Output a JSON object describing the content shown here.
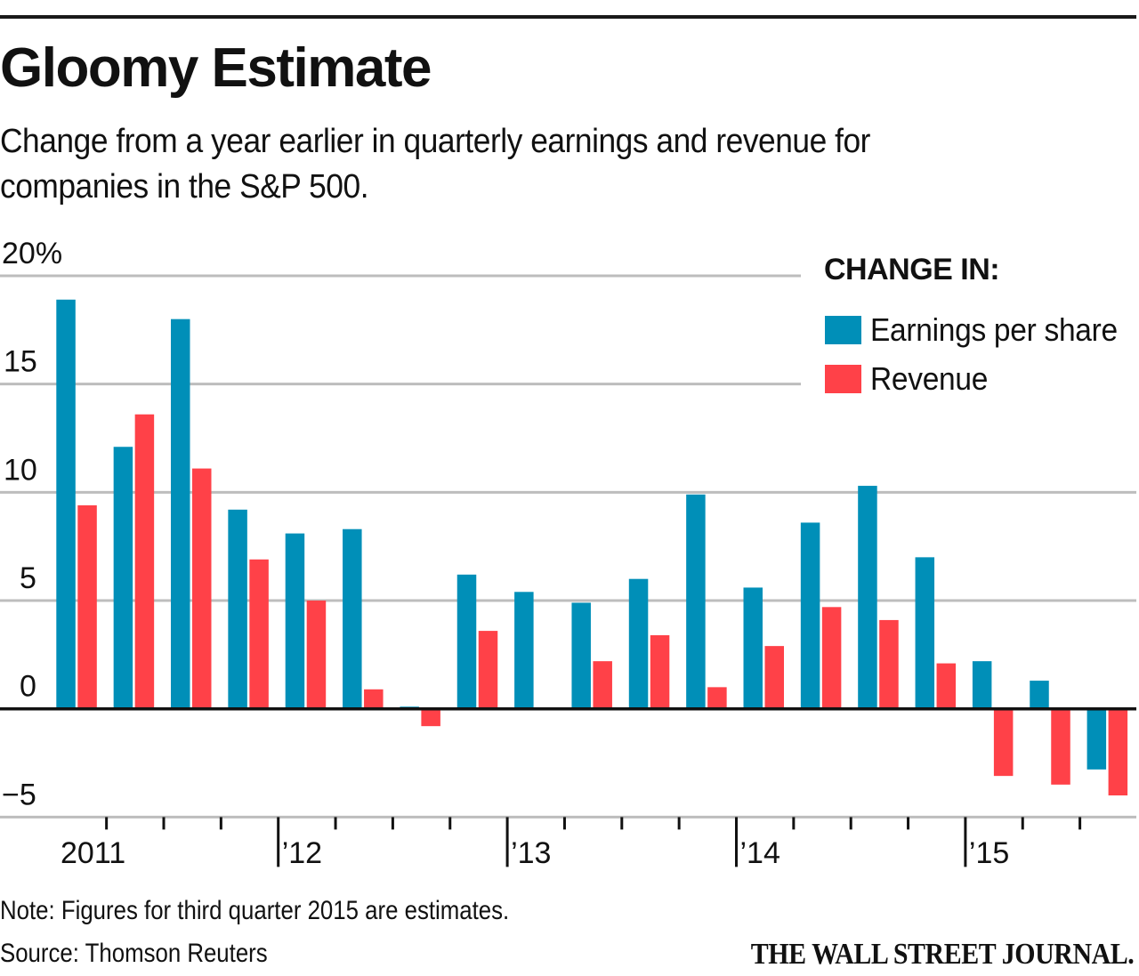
{
  "header": {
    "title": "Gloomy Estimate",
    "subtitle": "Change from a year earlier in quarterly earnings and revenue for companies in the S&P 500."
  },
  "legend": {
    "title": "CHANGE IN:",
    "items": [
      {
        "label": "Earnings per share",
        "color": "#008fb8"
      },
      {
        "label": "Revenue",
        "color": "#ff4148"
      }
    ]
  },
  "footer": {
    "note": "Note: Figures for third quarter 2015 are estimates.",
    "source": "Source: Thomson Reuters",
    "brand": "THE WALL STREET JOURNAL."
  },
  "chart_data": {
    "type": "bar",
    "title": "Gloomy Estimate",
    "subtitle": "Change from a year earlier in quarterly earnings and revenue for companies in the S&P 500.",
    "xlabel": "",
    "ylabel": "",
    "ylim": [
      -5,
      20
    ],
    "yticks": [
      20,
      15,
      10,
      5,
      0,
      -5
    ],
    "ytick_labels": [
      "20%",
      "15",
      "10",
      "5",
      "0",
      "−5"
    ],
    "grid": true,
    "legend_position": "top-right",
    "categories": [
      "Q1 2011",
      "Q2 2011",
      "Q3 2011",
      "Q4 2011",
      "Q1 2012",
      "Q2 2012",
      "Q3 2012",
      "Q4 2012",
      "Q1 2013",
      "Q2 2013",
      "Q3 2013",
      "Q4 2013",
      "Q1 2014",
      "Q2 2014",
      "Q3 2014",
      "Q4 2014",
      "Q1 2015",
      "Q2 2015",
      "Q3 2015"
    ],
    "year_labels": [
      {
        "label": "2011",
        "start_index": 0
      },
      {
        "label": "’12",
        "start_index": 4
      },
      {
        "label": "’13",
        "start_index": 8
      },
      {
        "label": "’14",
        "start_index": 12
      },
      {
        "label": "’15",
        "start_index": 16
      }
    ],
    "series": [
      {
        "name": "Earnings per share",
        "color": "#008fb8",
        "values": [
          18.9,
          12.1,
          18.0,
          9.2,
          8.1,
          8.3,
          0.1,
          6.2,
          5.4,
          4.9,
          6.0,
          9.9,
          5.6,
          8.6,
          10.3,
          7.0,
          2.2,
          1.3,
          -2.8
        ]
      },
      {
        "name": "Revenue",
        "color": "#ff4148",
        "values": [
          9.4,
          13.6,
          11.1,
          6.9,
          5.0,
          0.9,
          -0.8,
          3.6,
          0.0,
          2.2,
          3.4,
          1.0,
          2.9,
          4.7,
          4.1,
          2.1,
          -3.1,
          -3.5,
          -4.0
        ]
      }
    ],
    "annotations": [
      "Note: Figures for third quarter 2015 are estimates."
    ]
  }
}
